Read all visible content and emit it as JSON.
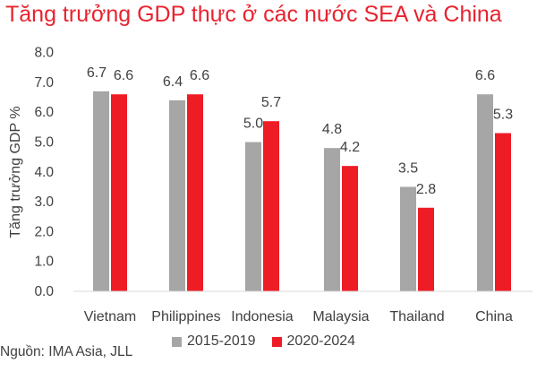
{
  "title": "Tăng trưởng GDP thực ở các nước SEA và China",
  "source": "Nguồn: IMA Asia, JLL",
  "colors": {
    "title": "#e8232e",
    "series_2015_2019": "#a6a6a6",
    "series_2020_2024": "#ee1c25",
    "text": "#404040"
  },
  "chart_data": {
    "type": "bar",
    "title": "Tăng trưởng GDP thực ở các nước SEA và China",
    "xlabel": "",
    "ylabel": "Tăng trưởng GDP %",
    "ylim": [
      0,
      8
    ],
    "yticks": [
      "0.0",
      "1.0",
      "2.0",
      "3.0",
      "4.0",
      "5.0",
      "6.0",
      "7.0",
      "8.0"
    ],
    "categories": [
      "Vietnam",
      "Philippines",
      "Indonesia",
      "Malaysia",
      "Thailand",
      "China"
    ],
    "series": [
      {
        "name": "2015-2019",
        "values": [
          6.7,
          6.4,
          5.0,
          4.8,
          3.5,
          6.6
        ],
        "labels": [
          "6.7",
          "6.4",
          "5.0",
          "4.8",
          "3.5",
          "6.6"
        ]
      },
      {
        "name": "2020-2024",
        "values": [
          6.6,
          6.6,
          5.7,
          4.2,
          2.8,
          5.3
        ],
        "labels": [
          "6.6",
          "6.6",
          "5.7",
          "4.2",
          "2.8",
          "5.3"
        ]
      }
    ],
    "grid": false,
    "legend": "bottom"
  }
}
